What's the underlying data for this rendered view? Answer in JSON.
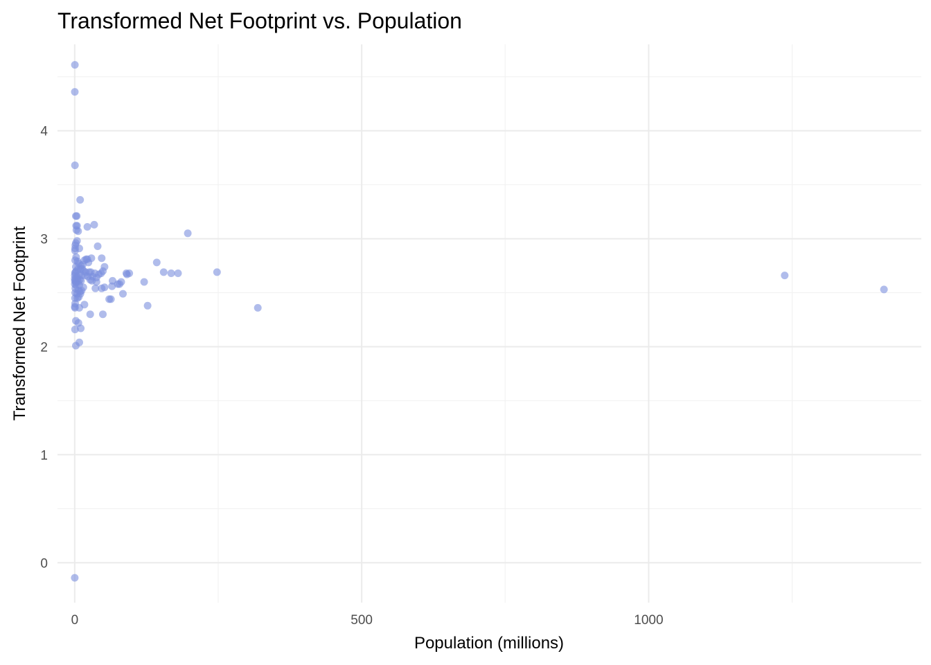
{
  "chart_data": {
    "type": "scatter",
    "title": "Transformed Net Footprint vs. Population",
    "xlabel": "Population (millions)",
    "ylabel": "Transformed Net Footprint",
    "xlim": [
      -30,
      1475
    ],
    "ylim": [
      -0.37,
      4.8
    ],
    "x_ticks": [
      0,
      500,
      1000
    ],
    "x_tick_labels": [
      "0",
      "500",
      "1000"
    ],
    "y_ticks": [
      0,
      1,
      2,
      3,
      4
    ],
    "y_tick_labels": [
      "0",
      "1",
      "2",
      "3",
      "4"
    ],
    "grid": true,
    "point_color": "#7b8fde",
    "point_opacity": 0.6,
    "series": [
      {
        "points": [
          [
            0.3,
            4.61
          ],
          [
            0.2,
            4.36
          ],
          [
            0.4,
            3.68
          ],
          [
            9.5,
            3.36
          ],
          [
            2.0,
            3.21
          ],
          [
            3.5,
            3.21
          ],
          [
            2.5,
            3.12
          ],
          [
            4.0,
            3.12
          ],
          [
            3.0,
            3.08
          ],
          [
            6.0,
            3.07
          ],
          [
            22.0,
            3.11
          ],
          [
            34.0,
            3.13
          ],
          [
            197.0,
            3.05
          ],
          [
            4.0,
            2.98
          ],
          [
            2.0,
            2.96
          ],
          [
            1.0,
            2.94
          ],
          [
            0.6,
            2.91
          ],
          [
            0.5,
            2.89
          ],
          [
            8.0,
            2.91
          ],
          [
            40.0,
            2.93
          ],
          [
            2.5,
            2.83
          ],
          [
            0.8,
            2.8
          ],
          [
            5.0,
            2.79
          ],
          [
            7.0,
            2.77
          ],
          [
            11.0,
            2.75
          ],
          [
            14.0,
            2.76
          ],
          [
            20.0,
            2.81
          ],
          [
            22.0,
            2.81
          ],
          [
            29.0,
            2.82
          ],
          [
            47.0,
            2.82
          ],
          [
            17.0,
            2.8
          ],
          [
            24.0,
            2.78
          ],
          [
            52.0,
            2.74
          ],
          [
            143.0,
            2.78
          ],
          [
            2.0,
            2.74
          ],
          [
            6.0,
            2.72
          ],
          [
            10.0,
            2.72
          ],
          [
            13.0,
            2.72
          ],
          [
            16.0,
            2.7
          ],
          [
            3.0,
            2.7
          ],
          [
            1.0,
            2.69
          ],
          [
            0.5,
            2.68
          ],
          [
            19.0,
            2.69
          ],
          [
            25.0,
            2.69
          ],
          [
            28.0,
            2.69
          ],
          [
            35.0,
            2.68
          ],
          [
            42.0,
            2.67
          ],
          [
            46.0,
            2.68
          ],
          [
            49.0,
            2.7
          ],
          [
            90.0,
            2.68
          ],
          [
            95.0,
            2.68
          ],
          [
            91.0,
            2.67
          ],
          [
            155.0,
            2.69
          ],
          [
            168.0,
            2.68
          ],
          [
            180.0,
            2.68
          ],
          [
            248.0,
            2.69
          ],
          [
            1237.0,
            2.66
          ],
          [
            0.2,
            2.66
          ],
          [
            4.0,
            2.65
          ],
          [
            7.0,
            2.66
          ],
          [
            12.0,
            2.66
          ],
          [
            18.0,
            2.66
          ],
          [
            23.0,
            2.65
          ],
          [
            31.0,
            2.65
          ],
          [
            38.0,
            2.64
          ],
          [
            0.1,
            2.63
          ],
          [
            2.0,
            2.63
          ],
          [
            5.0,
            2.63
          ],
          [
            9.0,
            2.62
          ],
          [
            27.0,
            2.62
          ],
          [
            30.0,
            2.61
          ],
          [
            66.0,
            2.61
          ],
          [
            0.3,
            2.61
          ],
          [
            1.5,
            2.6
          ],
          [
            3.0,
            2.6
          ],
          [
            6.0,
            2.6
          ],
          [
            11.0,
            2.61
          ],
          [
            38.0,
            2.6
          ],
          [
            75.0,
            2.58
          ],
          [
            78.0,
            2.58
          ],
          [
            81.0,
            2.6
          ],
          [
            121.0,
            2.6
          ],
          [
            0.2,
            2.58
          ],
          [
            2.5,
            2.57
          ],
          [
            8.0,
            2.57
          ],
          [
            15.0,
            2.55
          ],
          [
            52.0,
            2.55
          ],
          [
            65.0,
            2.56
          ],
          [
            36.0,
            2.54
          ],
          [
            47.0,
            2.54
          ],
          [
            1.0,
            2.54
          ],
          [
            6.5,
            2.52
          ],
          [
            9.5,
            2.51
          ],
          [
            12.0,
            2.52
          ],
          [
            0.8,
            2.5
          ],
          [
            4.0,
            2.49
          ],
          [
            10.0,
            2.49
          ],
          [
            84.0,
            2.49
          ],
          [
            0.5,
            2.45
          ],
          [
            4.5,
            2.45
          ],
          [
            7.0,
            2.46
          ],
          [
            0.8,
            2.4
          ],
          [
            60.0,
            2.44
          ],
          [
            63.0,
            2.44
          ],
          [
            17.0,
            2.39
          ],
          [
            127.0,
            2.38
          ],
          [
            0.2,
            2.37
          ],
          [
            0.4,
            2.36
          ],
          [
            8.0,
            2.36
          ],
          [
            319.0,
            2.36
          ],
          [
            27.0,
            2.3
          ],
          [
            49.0,
            2.3
          ],
          [
            2.0,
            2.24
          ],
          [
            6.5,
            2.22
          ],
          [
            0.5,
            2.16
          ],
          [
            10.5,
            2.17
          ],
          [
            8.0,
            2.04
          ],
          [
            2.0,
            2.01
          ],
          [
            0.1,
            -0.14
          ],
          [
            1410.0,
            2.53
          ]
        ]
      }
    ]
  }
}
